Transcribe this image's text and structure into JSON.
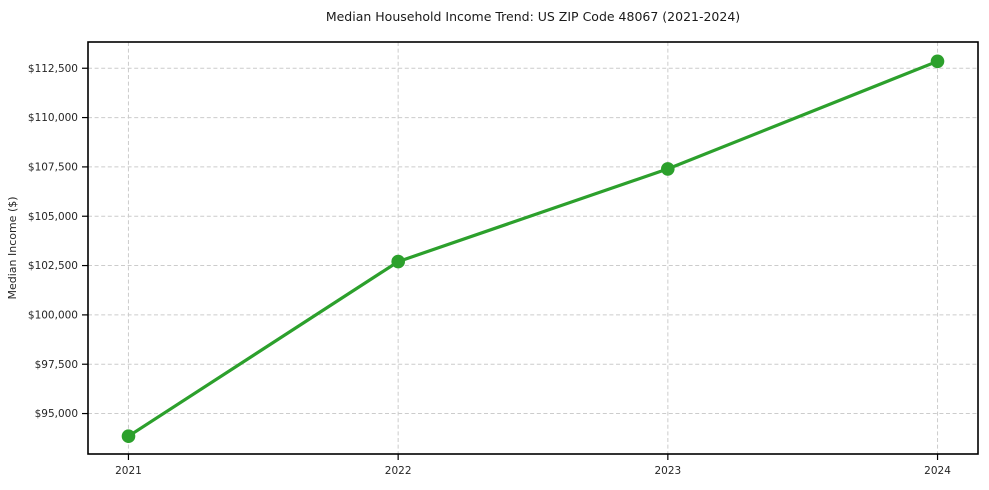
{
  "chart_data": {
    "type": "line",
    "title": "Median Household Income Trend: US ZIP Code 48067 (2021-2024)",
    "xlabel": "",
    "ylabel": "Median Income ($)",
    "x": [
      2021,
      2022,
      2023,
      2024
    ],
    "values": [
      93850,
      102700,
      107400,
      112850
    ],
    "xlim": [
      2020.85,
      2024.15
    ],
    "ylim": [
      92950,
      113830
    ],
    "xticks": {
      "values": [
        2021,
        2022,
        2023,
        2024
      ],
      "labels": [
        "2021",
        "2022",
        "2023",
        "2024"
      ]
    },
    "yticks": {
      "values": [
        95000,
        97500,
        100000,
        102500,
        105000,
        107500,
        110000,
        112500
      ],
      "labels": [
        "$95,000",
        "$97,500",
        "$100,000",
        "$102,500",
        "$105,000",
        "$107,500",
        "$110,000",
        "$112,500"
      ]
    },
    "grid": true,
    "grid_style": "dashed",
    "legend": "none",
    "line_color": "#2ca02c",
    "marker": "circle",
    "grid_color": "#cccccc",
    "spine_color": "#000000",
    "background_color": "#ffffff"
  }
}
